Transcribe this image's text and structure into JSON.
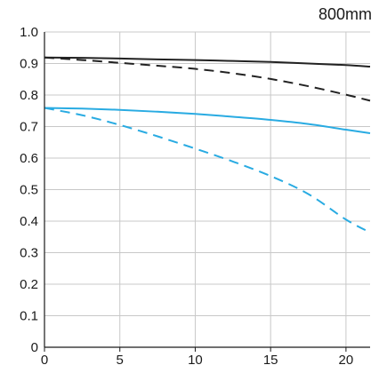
{
  "chart_data": {
    "type": "line",
    "title": "800mm",
    "xlim": [
      0,
      21.6
    ],
    "ylim": [
      0,
      1.0
    ],
    "xticks": [
      0,
      5,
      10,
      15,
      20
    ],
    "xtick_labels": [
      "0",
      "5",
      "10",
      "15",
      "20"
    ],
    "yticks": [
      0,
      0.1,
      0.2,
      0.3,
      0.4,
      0.5,
      0.6,
      0.7,
      0.8,
      0.9,
      1.0
    ],
    "ytick_labels": [
      "0",
      "0.1",
      "0.2",
      "0.3",
      "0.4",
      "0.5",
      "0.6",
      "0.7",
      "0.8",
      "0.9",
      "1.0"
    ],
    "grid": true,
    "series": [
      {
        "color": "#222222",
        "dash": "solid",
        "x": [
          0,
          2.5,
          5,
          7.5,
          10,
          12.5,
          15,
          17.5,
          20,
          21.6
        ],
        "y": [
          0.919,
          0.918,
          0.916,
          0.913,
          0.911,
          0.908,
          0.905,
          0.9,
          0.895,
          0.89
        ]
      },
      {
        "color": "#222222",
        "dash": "dashed",
        "x": [
          0,
          2.5,
          5,
          7.5,
          10,
          12.5,
          15,
          17.5,
          20,
          21.6
        ],
        "y": [
          0.919,
          0.911,
          0.902,
          0.893,
          0.883,
          0.869,
          0.851,
          0.828,
          0.801,
          0.782
        ]
      },
      {
        "color": "#29abe2",
        "dash": "solid",
        "x": [
          0,
          2.5,
          5,
          7.5,
          10,
          12.5,
          15,
          17.5,
          20,
          21.6
        ],
        "y": [
          0.759,
          0.757,
          0.753,
          0.747,
          0.74,
          0.731,
          0.721,
          0.708,
          0.69,
          0.679
        ]
      },
      {
        "color": "#29abe2",
        "dash": "dashed",
        "x": [
          0,
          2.5,
          5,
          7.5,
          10,
          12.5,
          15,
          17.5,
          20,
          21.6
        ],
        "y": [
          0.759,
          0.736,
          0.705,
          0.669,
          0.63,
          0.589,
          0.543,
          0.486,
          0.405,
          0.364
        ]
      }
    ]
  }
}
